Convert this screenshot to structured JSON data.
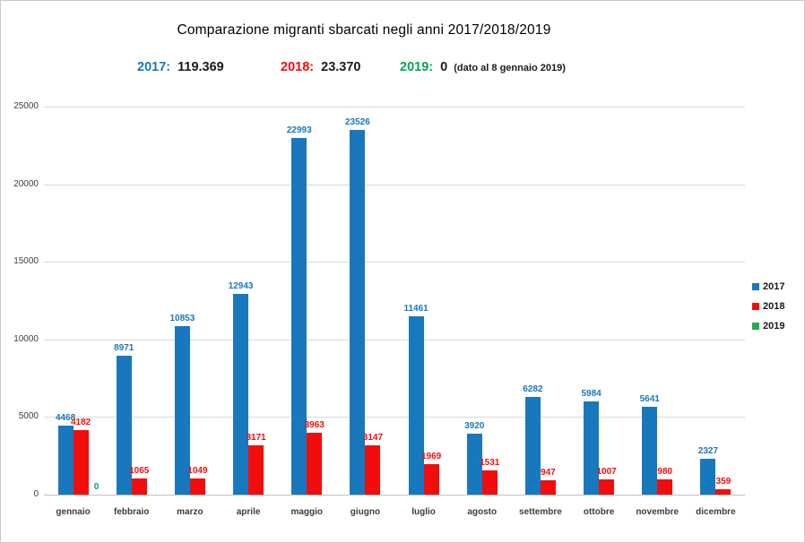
{
  "frame": {
    "background": "#ffffff",
    "border_color": "#c9c9c9"
  },
  "title": "Comparazione migranti sbarcati negli anni 2017/2018/2019",
  "summary": {
    "items": [
      {
        "label": "2017:",
        "value": "119.369",
        "color": "#1878be",
        "note": ""
      },
      {
        "label": "2018:",
        "value": "23.370",
        "color": "#f20d0d",
        "note": ""
      },
      {
        "label": "2019:",
        "value": "0",
        "color": "#00a750",
        "note": "(dato al 8 gennaio 2019)"
      }
    ]
  },
  "legend": {
    "position": "right",
    "entries": [
      {
        "label": "2017",
        "color": "#1878be"
      },
      {
        "label": "2018",
        "color": "#f20d0d"
      },
      {
        "label": "2019",
        "color": "#2ca853"
      }
    ]
  },
  "chart_data": {
    "type": "bar",
    "title": "Comparazione migranti sbarcati negli anni 2017/2018/2019",
    "xlabel": "",
    "ylabel": "",
    "categories": [
      "gennaio",
      "febbraio",
      "marzo",
      "aprile",
      "maggio",
      "giugno",
      "luglio",
      "agosto",
      "settembre",
      "ottobre",
      "novembre",
      "dicembre"
    ],
    "series": [
      {
        "name": "2017",
        "color": "#1878be",
        "values": [
          4468,
          8971,
          10853,
          12943,
          22993,
          23526,
          11461,
          3920,
          6282,
          5984,
          5641,
          2327
        ]
      },
      {
        "name": "2018",
        "color": "#f20d0d",
        "values": [
          4182,
          1065,
          1049,
          3171,
          3963,
          3147,
          1969,
          1531,
          947,
          1007,
          980,
          359
        ]
      },
      {
        "name": "2019",
        "color": "#00a750",
        "values": [
          0,
          null,
          null,
          null,
          null,
          null,
          null,
          null,
          null,
          null,
          null,
          null
        ]
      }
    ],
    "totals": {
      "2017": "119.369",
      "2018": "23.370",
      "2019": "0"
    },
    "ylim": [
      0,
      25000
    ],
    "yticks": [
      0,
      5000,
      10000,
      15000,
      20000,
      25000
    ],
    "grid": true,
    "data_labels": true,
    "legend_position": "right"
  }
}
